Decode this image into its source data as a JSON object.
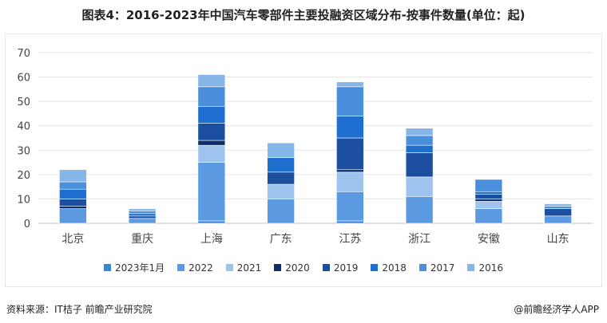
{
  "title": "图表4：2016-2023年中国汽车零部件主要投融资区域分布-按事件数量(单位：起)",
  "source": "资料来源：IT桔子 前瞻产业研究院",
  "credit": "@前瞻经济学人APP",
  "chart_data": {
    "type": "bar",
    "stacked": true,
    "categories": [
      "北京",
      "重庆",
      "上海",
      "广东",
      "江苏",
      "浙江",
      "安徽",
      "山东"
    ],
    "ylim": [
      0,
      70
    ],
    "yticks": [
      0,
      10,
      20,
      30,
      40,
      50,
      60,
      70
    ],
    "grid": true,
    "legend_position": "bottom",
    "series": [
      {
        "name": "2023年1月",
        "color": "#3a86d6",
        "values": [
          0,
          0,
          1,
          0,
          1,
          0,
          0,
          0
        ]
      },
      {
        "name": "2022",
        "color": "#5b9ae0",
        "values": [
          6,
          2,
          24,
          10,
          12,
          11,
          6,
          3
        ]
      },
      {
        "name": "2021",
        "color": "#9dc3ee",
        "values": [
          0,
          0,
          7,
          6,
          8,
          8,
          3,
          0
        ]
      },
      {
        "name": "2020",
        "color": "#0d2f6b",
        "values": [
          1,
          0,
          2,
          0,
          1,
          0,
          1,
          0
        ]
      },
      {
        "name": "2019",
        "color": "#1c4fa0",
        "values": [
          3,
          1,
          7,
          5,
          13,
          10,
          2,
          3
        ]
      },
      {
        "name": "2018",
        "color": "#1f6fd1",
        "values": [
          4,
          1,
          7,
          6,
          9,
          3,
          1,
          0
        ]
      },
      {
        "name": "2017",
        "color": "#4a8fdc",
        "values": [
          3,
          1,
          8,
          0,
          12,
          4,
          5,
          1
        ]
      },
      {
        "name": "2016",
        "color": "#86b6e8",
        "values": [
          5,
          1,
          5,
          6,
          2,
          3,
          0,
          1
        ]
      }
    ]
  }
}
